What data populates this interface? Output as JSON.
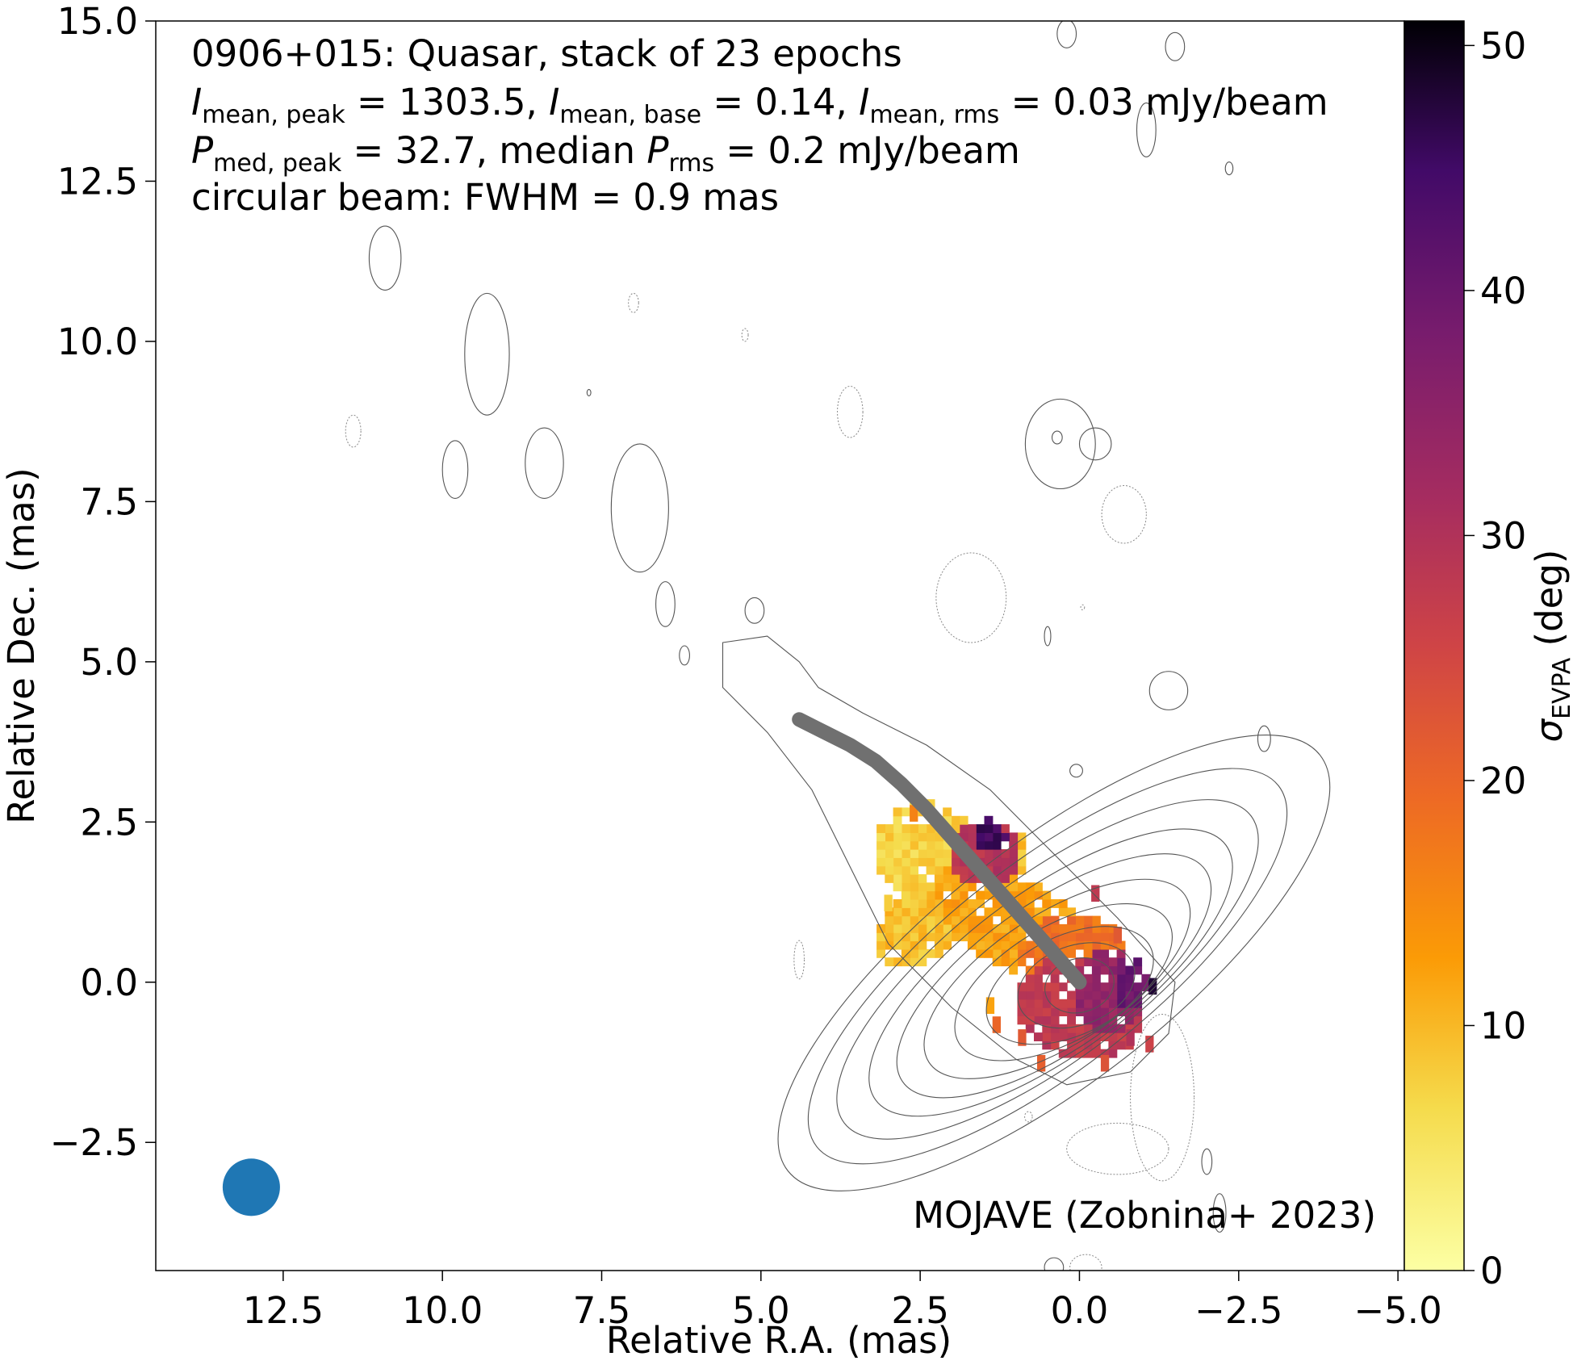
{
  "chart_data": {
    "type": "heatmap",
    "title_lines": [
      {
        "id": "line1",
        "parts": [
          {
            "t": "0906+015: Quasar, stack of 23 epochs"
          }
        ]
      },
      {
        "id": "line2",
        "parts": [
          {
            "t": "I",
            "style": "italic"
          },
          {
            "t": "mean, peak",
            "style": "sub"
          },
          {
            "t": " = 1303.5, "
          },
          {
            "t": "I",
            "style": "italic"
          },
          {
            "t": "mean, base",
            "style": "sub"
          },
          {
            "t": " = 0.14, "
          },
          {
            "t": "I",
            "style": "italic"
          },
          {
            "t": "mean, rms",
            "style": "sub"
          },
          {
            "t": " = 0.03 mJy/beam"
          }
        ]
      },
      {
        "id": "line3",
        "parts": [
          {
            "t": "P",
            "style": "italic"
          },
          {
            "t": "med, peak",
            "style": "sub"
          },
          {
            "t": " = 32.7, median "
          },
          {
            "t": "P",
            "style": "italic"
          },
          {
            "t": "rms",
            "style": "sub"
          },
          {
            "t": " = 0.2 mJy/beam"
          }
        ]
      },
      {
        "id": "line4",
        "parts": [
          {
            "t": "circular beam: FWHM = 0.9 mas"
          }
        ]
      }
    ],
    "credit": "MOJAVE (Zobnina+ 2023)",
    "xlabel": "Relative R.A. (mas)",
    "ylabel": "Relative Dec. (mas)",
    "colorbar_label": {
      "symbol": "σ",
      "sub": "EVPA",
      "rest": " (deg)"
    },
    "xlim": [
      14.5,
      -5.1
    ],
    "ylim": [
      -4.5,
      15.0
    ],
    "x_ticks": [
      12.5,
      10.0,
      7.5,
      5.0,
      2.5,
      0.0,
      -2.5,
      -5.0
    ],
    "x_tick_labels": [
      "12.5",
      "10.0",
      "7.5",
      "5.0",
      "2.5",
      "0.0",
      "−2.5",
      "−5.0"
    ],
    "y_ticks": [
      -2.5,
      0.0,
      2.5,
      5.0,
      7.5,
      10.0,
      12.5,
      15.0
    ],
    "y_tick_labels": [
      "−2.5",
      "0.0",
      "2.5",
      "5.0",
      "7.5",
      "10.0",
      "12.5",
      "15.0"
    ],
    "colorbar_range": [
      0,
      51
    ],
    "colorbar_ticks": [
      0,
      10,
      20,
      30,
      40,
      50
    ],
    "colorbar_tick_labels": [
      "0",
      "10",
      "20",
      "30",
      "40",
      "50"
    ],
    "colormap": "inferno_r",
    "core": {
      "x": 0.0,
      "y": 0.0
    },
    "ridge_line": {
      "color": "#707070",
      "points": [
        [
          0.0,
          0.0
        ],
        [
          0.4,
          0.45
        ],
        [
          0.8,
          0.9
        ],
        [
          1.2,
          1.35
        ],
        [
          1.6,
          1.8
        ],
        [
          2.0,
          2.25
        ],
        [
          2.4,
          2.7
        ],
        [
          2.8,
          3.1
        ],
        [
          3.2,
          3.45
        ],
        [
          3.6,
          3.7
        ],
        [
          4.0,
          3.9
        ],
        [
          4.4,
          4.1
        ]
      ]
    },
    "beam": {
      "x": 13.0,
      "y": -3.2,
      "fwhm": 0.9,
      "color": "#1f77b4"
    },
    "intensity_contours": [
      {
        "level": 1,
        "cx": 0.4,
        "cy": 0.3,
        "a": 5.3,
        "b": 1.85,
        "angle_deg": 38
      },
      {
        "level": 2,
        "cx": 0.5,
        "cy": 0.25,
        "a": 4.6,
        "b": 1.6,
        "angle_deg": 38
      },
      {
        "level": 3,
        "cx": 0.5,
        "cy": 0.2,
        "a": 4.0,
        "b": 1.42,
        "angle_deg": 37
      },
      {
        "level": 4,
        "cx": 0.45,
        "cy": 0.15,
        "a": 3.4,
        "b": 1.28,
        "angle_deg": 36
      },
      {
        "level": 5,
        "cx": 0.4,
        "cy": 0.1,
        "a": 2.9,
        "b": 1.15,
        "angle_deg": 35
      },
      {
        "level": 6,
        "cx": 0.35,
        "cy": 0.05,
        "a": 2.4,
        "b": 1.02,
        "angle_deg": 33
      },
      {
        "level": 7,
        "cx": 0.25,
        "cy": 0.0,
        "a": 1.9,
        "b": 0.9,
        "angle_deg": 30
      },
      {
        "level": 8,
        "cx": 0.15,
        "cy": -0.05,
        "a": 1.4,
        "b": 0.78,
        "angle_deg": 25
      },
      {
        "level": 9,
        "cx": 0.05,
        "cy": -0.05,
        "a": 0.95,
        "b": 0.62,
        "angle_deg": 20
      },
      {
        "level": 10,
        "cx": 0.0,
        "cy": -0.05,
        "a": 0.55,
        "b": 0.42,
        "angle_deg": 15
      }
    ],
    "outer_jet_contour": [
      [
        5.6,
        5.3
      ],
      [
        4.9,
        5.4
      ],
      [
        4.4,
        5.0
      ],
      [
        4.1,
        4.6
      ],
      [
        3.4,
        4.2
      ],
      [
        2.4,
        3.7
      ],
      [
        1.4,
        3.0
      ],
      [
        0.4,
        2.0
      ],
      [
        -0.6,
        1.0
      ],
      [
        -1.5,
        0.0
      ],
      [
        -1.4,
        -0.8
      ],
      [
        -0.8,
        -1.4
      ],
      [
        0.2,
        -1.6
      ],
      [
        1.0,
        -1.2
      ],
      [
        2.0,
        -0.4
      ],
      [
        3.0,
        0.6
      ],
      [
        3.6,
        1.8
      ],
      [
        4.2,
        3.0
      ],
      [
        4.9,
        3.9
      ],
      [
        5.6,
        4.6
      ]
    ],
    "positive_islands": [
      {
        "x": 10.9,
        "y": 11.3,
        "rx": 0.25,
        "ry": 0.5
      },
      {
        "x": 9.3,
        "y": 9.8,
        "rx": 0.35,
        "ry": 0.95
      },
      {
        "x": 8.4,
        "y": 8.1,
        "rx": 0.3,
        "ry": 0.55
      },
      {
        "x": 6.9,
        "y": 7.4,
        "rx": 0.45,
        "ry": 1.0
      },
      {
        "x": 9.8,
        "y": 8.0,
        "rx": 0.2,
        "ry": 0.45
      },
      {
        "x": 6.5,
        "y": 5.9,
        "rx": 0.15,
        "ry": 0.35
      },
      {
        "x": 5.1,
        "y": 5.8,
        "rx": 0.15,
        "ry": 0.2
      },
      {
        "x": 0.3,
        "y": 8.4,
        "rx": 0.55,
        "ry": 0.7
      },
      {
        "x": -0.25,
        "y": 8.4,
        "rx": 0.25,
        "ry": 0.25
      },
      {
        "x": 0.35,
        "y": 8.5,
        "rx": 0.08,
        "ry": 0.1
      },
      {
        "x": -1.4,
        "y": 4.55,
        "rx": 0.3,
        "ry": 0.3
      },
      {
        "x": -1.5,
        "y": 14.6,
        "rx": 0.15,
        "ry": 0.22
      },
      {
        "x": -1.05,
        "y": 13.3,
        "rx": 0.15,
        "ry": 0.42
      },
      {
        "x": 0.2,
        "y": 14.8,
        "rx": 0.15,
        "ry": 0.22
      },
      {
        "x": -2.35,
        "y": 12.7,
        "rx": 0.06,
        "ry": 0.1
      },
      {
        "x": -2.9,
        "y": 3.8,
        "rx": 0.1,
        "ry": 0.2
      },
      {
        "x": 0.05,
        "y": 3.3,
        "rx": 0.1,
        "ry": 0.1
      },
      {
        "x": -2.2,
        "y": -3.6,
        "rx": 0.1,
        "ry": 0.3
      },
      {
        "x": -2.0,
        "y": -2.8,
        "rx": 0.08,
        "ry": 0.2
      },
      {
        "x": 6.2,
        "y": 5.1,
        "rx": 0.08,
        "ry": 0.15
      },
      {
        "x": 0.5,
        "y": 5.4,
        "rx": 0.05,
        "ry": 0.15
      },
      {
        "x": 0.4,
        "y": -4.45,
        "rx": 0.15,
        "ry": 0.15
      },
      {
        "x": 7.7,
        "y": 9.2,
        "rx": 0.03,
        "ry": 0.05
      }
    ],
    "negative_islands": [
      {
        "x": 11.4,
        "y": 8.6,
        "rx": 0.12,
        "ry": 0.25
      },
      {
        "x": 7.0,
        "y": 10.6,
        "rx": 0.08,
        "ry": 0.15
      },
      {
        "x": 5.25,
        "y": 10.1,
        "rx": 0.05,
        "ry": 0.1
      },
      {
        "x": 3.6,
        "y": 8.9,
        "rx": 0.2,
        "ry": 0.4
      },
      {
        "x": 1.7,
        "y": 6.0,
        "rx": 0.55,
        "ry": 0.7
      },
      {
        "x": -0.7,
        "y": 7.3,
        "rx": 0.35,
        "ry": 0.45
      },
      {
        "x": 4.4,
        "y": 0.35,
        "rx": 0.08,
        "ry": 0.3
      },
      {
        "x": -0.1,
        "y": -4.45,
        "rx": 0.25,
        "ry": 0.2
      },
      {
        "x": -1.3,
        "y": -1.8,
        "rx": 0.5,
        "ry": 1.3
      },
      {
        "x": -0.6,
        "y": -2.6,
        "rx": 0.8,
        "ry": 0.4
      },
      {
        "x": 0.8,
        "y": -2.1,
        "rx": 0.06,
        "ry": 0.08
      },
      {
        "x": -0.05,
        "y": 5.85,
        "rx": 0.03,
        "ry": 0.04
      }
    ],
    "evpa_regions": [
      {
        "cx": 2.4,
        "cy": 2.05,
        "rx": 0.85,
        "ry": 0.75,
        "angle_deg": 20,
        "v": 7
      },
      {
        "cx": 2.0,
        "cy": 1.3,
        "rx": 1.5,
        "ry": 0.6,
        "angle_deg": -40,
        "v": 9
      },
      {
        "cx": 0.9,
        "cy": 0.85,
        "rx": 1.6,
        "ry": 0.7,
        "angle_deg": 30,
        "v": 12
      },
      {
        "cx": 0.1,
        "cy": 0.2,
        "rx": 0.9,
        "ry": 0.9,
        "angle_deg": 0,
        "v": 18
      },
      {
        "cx": 1.5,
        "cy": 2.0,
        "rx": 0.55,
        "ry": 0.5,
        "angle_deg": 0,
        "v": 29
      },
      {
        "cx": 1.4,
        "cy": 2.3,
        "rx": 0.25,
        "ry": 0.25,
        "angle_deg": 0,
        "v": 45
      },
      {
        "cx": 0.0,
        "cy": -0.4,
        "rx": 1.0,
        "ry": 0.8,
        "angle_deg": 20,
        "v": 28
      },
      {
        "cx": -0.45,
        "cy": -0.15,
        "rx": 0.55,
        "ry": 0.7,
        "angle_deg": 0,
        "v": 34
      },
      {
        "cx": -0.8,
        "cy": 0.0,
        "rx": 0.25,
        "ry": 0.45,
        "angle_deg": 0,
        "v": 40
      }
    ],
    "evpa_speckles": [
      {
        "x": -1.15,
        "y": 0.0,
        "v": 48
      },
      {
        "x": 0.9,
        "y": -0.8,
        "v": 22
      },
      {
        "x": 1.3,
        "y": -0.6,
        "v": 20
      },
      {
        "x": 0.6,
        "y": -1.2,
        "v": 21
      },
      {
        "x": -0.4,
        "y": -1.2,
        "v": 23
      },
      {
        "x": -0.8,
        "y": -0.8,
        "v": 30
      },
      {
        "x": -1.1,
        "y": -0.9,
        "v": 26
      },
      {
        "x": 1.4,
        "y": -0.3,
        "v": 12
      },
      {
        "x": -0.25,
        "y": 1.45,
        "v": 28
      },
      {
        "x": -0.6,
        "y": 0.8,
        "v": 22
      },
      {
        "x": 3.0,
        "y": 1.3,
        "v": 8
      },
      {
        "x": 2.6,
        "y": 2.7,
        "v": 16
      }
    ]
  }
}
